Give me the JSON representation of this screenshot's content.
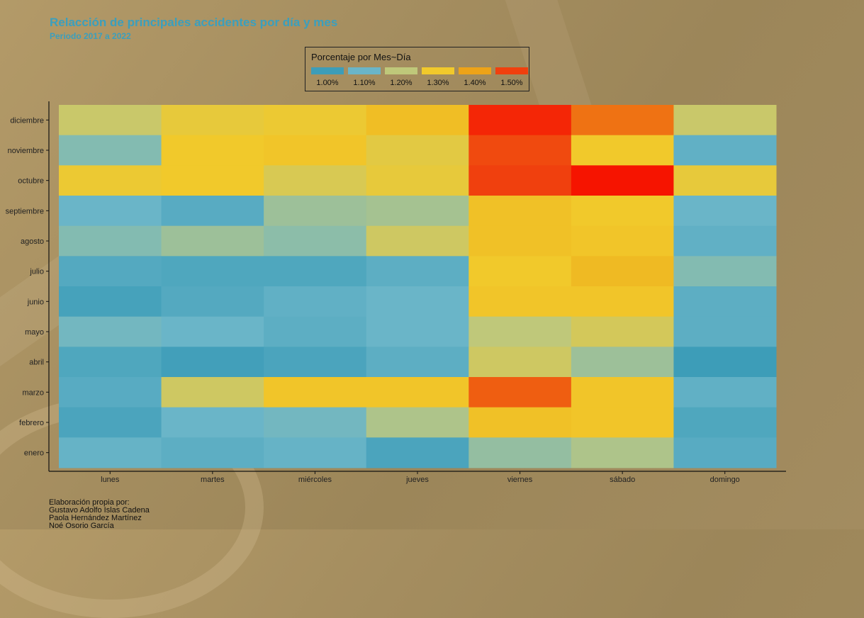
{
  "chart_data": {
    "type": "heatmap",
    "title": "Relacción de principales accidentes por día y mes",
    "subtitle": "Periodo 2017 a 2022",
    "legend": {
      "title": "Porcentaje por Mes~Día",
      "placement": "top-center",
      "keys": [
        {
          "label": "1.00%",
          "color": "#3d9db8"
        },
        {
          "label": "1.10%",
          "color": "#6ab5c8"
        },
        {
          "label": "1.20%",
          "color": "#bfc87a"
        },
        {
          "label": "1.30%",
          "color": "#f1c92b"
        },
        {
          "label": "1.40%",
          "color": "#eda318"
        },
        {
          "label": "1.50%",
          "color": "#f0400e"
        }
      ]
    },
    "x_categories": [
      "lunes",
      "martes",
      "miércoles",
      "jueves",
      "viernes",
      "sábado",
      "domingo"
    ],
    "y_categories": [
      "diciembre",
      "noviembre",
      "octubre",
      "septiembre",
      "agosto",
      "julio",
      "junio",
      "mayo",
      "abril",
      "marzo",
      "febrero",
      "enero"
    ],
    "value_unit": "%",
    "color_range": [
      1.0,
      1.55
    ],
    "values": [
      [
        1.22,
        1.28,
        1.29,
        1.33,
        1.53,
        1.45,
        1.22
      ],
      [
        1.13,
        1.3,
        1.31,
        1.27,
        1.49,
        1.3,
        1.08
      ],
      [
        1.29,
        1.3,
        1.25,
        1.28,
        1.5,
        1.55,
        1.28
      ],
      [
        1.1,
        1.06,
        1.16,
        1.17,
        1.32,
        1.3,
        1.1
      ],
      [
        1.13,
        1.16,
        1.14,
        1.23,
        1.32,
        1.31,
        1.08
      ],
      [
        1.05,
        1.04,
        1.04,
        1.07,
        1.3,
        1.34,
        1.13
      ],
      [
        1.02,
        1.05,
        1.08,
        1.1,
        1.31,
        1.31,
        1.07
      ],
      [
        1.11,
        1.1,
        1.07,
        1.1,
        1.2,
        1.24,
        1.07
      ],
      [
        1.04,
        1.01,
        1.03,
        1.07,
        1.23,
        1.16,
        1.0
      ],
      [
        1.06,
        1.23,
        1.31,
        1.31,
        1.47,
        1.31,
        1.08
      ],
      [
        1.03,
        1.1,
        1.11,
        1.18,
        1.32,
        1.31,
        1.04
      ],
      [
        1.09,
        1.07,
        1.09,
        1.03,
        1.15,
        1.18,
        1.06
      ]
    ]
  },
  "credits": {
    "lines": [
      "Elaboración propia por:",
      "Gustavo Adolfo Islas Cadena",
      "Paola Hernández Martínez",
      "Noé Osorio García"
    ]
  }
}
